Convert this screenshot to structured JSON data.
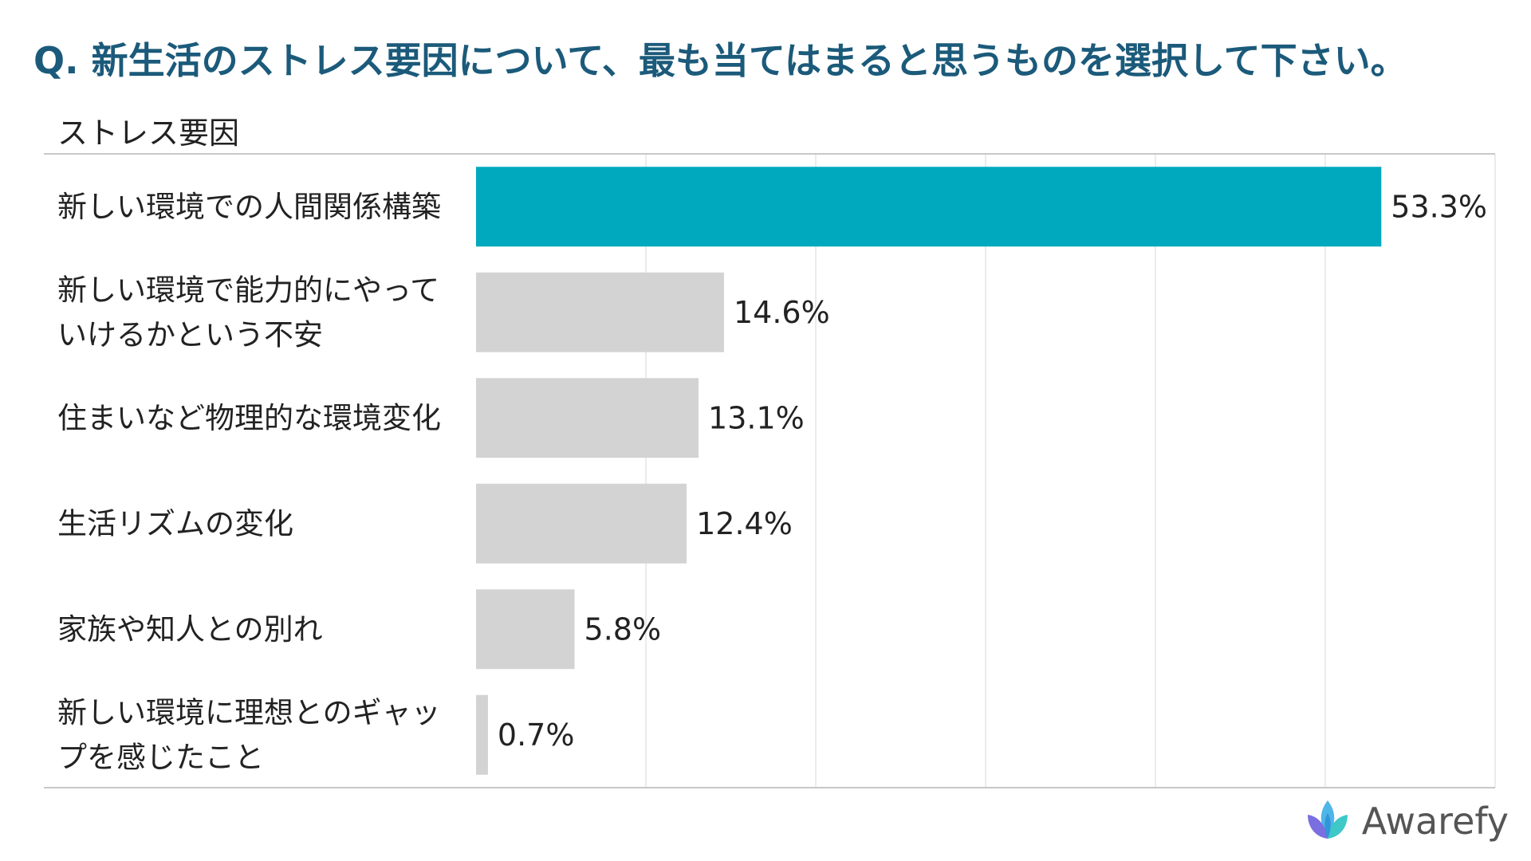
{
  "title": "Q. 新生活のストレス要因について、最も当てはまると思うものを選択して下さい。",
  "brand": {
    "name": "Awarefy",
    "logo_icon": "awarefy-logo-icon"
  },
  "colors": {
    "title": "#1b5a7a",
    "highlight_bar": "#00a9bd",
    "default_bar": "#d3d3d3",
    "gridline": "#ebebeb",
    "axis_line": "#c8c8c8"
  },
  "chart_data": {
    "type": "bar",
    "orientation": "horizontal",
    "category_header": "ストレス要因",
    "categories": [
      [
        "新しい環境での人間関係構築"
      ],
      [
        "新しい環境で能力的にやって",
        "いけるかという不安"
      ],
      [
        "住まいなど物理的な環境変化"
      ],
      [
        "生活リズムの変化"
      ],
      [
        "家族や知人との別れ"
      ],
      [
        "新しい環境に理想とのギャッ",
        "プを感じたこと"
      ]
    ],
    "values": [
      53.3,
      14.6,
      13.1,
      12.4,
      5.8,
      0.7
    ],
    "value_labels": [
      "53.3%",
      "14.6%",
      "13.1%",
      "12.4%",
      "5.8%",
      "0.7%"
    ],
    "highlight_index": 0,
    "xlim": [
      0,
      60
    ],
    "grid": true,
    "legend": "none"
  }
}
